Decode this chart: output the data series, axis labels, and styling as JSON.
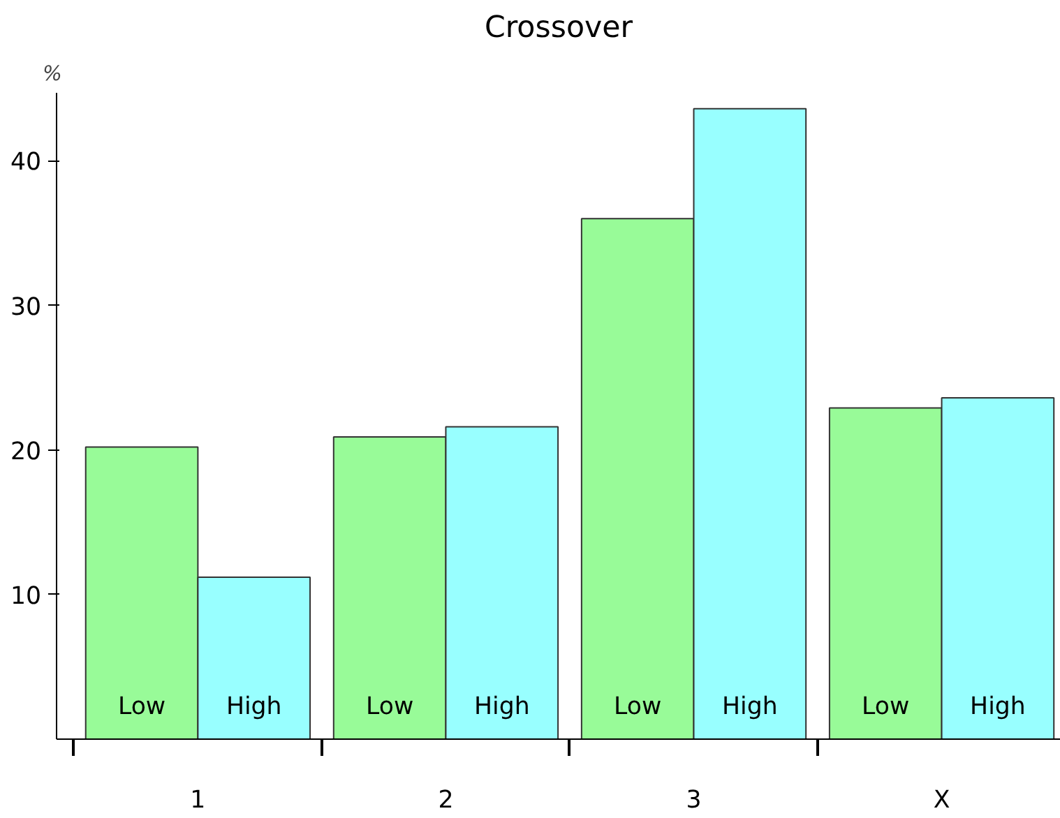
{
  "chart_data": {
    "type": "bar",
    "title": "Crossover",
    "ylabel": "%",
    "categories": [
      "1",
      "2",
      "3",
      "X"
    ],
    "series": [
      {
        "name": "Low",
        "color": "#98fb98",
        "values": [
          20.2,
          20.9,
          36.0,
          22.9
        ]
      },
      {
        "name": "High",
        "color": "#98ffff",
        "values": [
          11.2,
          21.6,
          43.6,
          23.6
        ]
      }
    ],
    "ylim": [
      0,
      44.7
    ],
    "yticks": [
      10,
      20,
      30,
      40
    ],
    "grid": false
  }
}
